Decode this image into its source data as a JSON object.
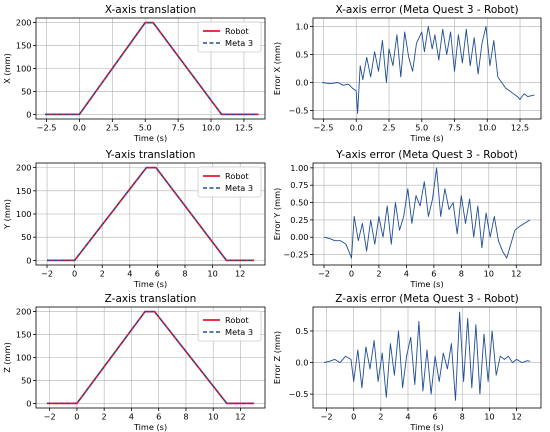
{
  "figure": {
    "background": "#ffffff",
    "robot_color": "#e8142c",
    "meta_color": "#1f4e96",
    "error_color": "#1f4e96",
    "grid_color": "#b0b0b0"
  },
  "chart_data": [
    {
      "id": "x_translation",
      "type": "line",
      "title": "X-axis translation",
      "xlabel": "Time (s)",
      "ylabel": "X (mm)",
      "xlim": [
        -3.3,
        14.1
      ],
      "ylim": [
        -10,
        210
      ],
      "xticks": [
        -2.5,
        0,
        2.5,
        5,
        7.5,
        10,
        12.5
      ],
      "xtick_labels": [
        "−2.5",
        "0.0",
        "2.5",
        "5.0",
        "7.5",
        "10.0",
        "12.5"
      ],
      "yticks": [
        0,
        50,
        100,
        150,
        200
      ],
      "ytick_labels": [
        "0",
        "50",
        "100",
        "150",
        "200"
      ],
      "grid": true,
      "legend": "upper right",
      "series": [
        {
          "name": "Robot",
          "style": "solid",
          "x": [
            -2.6,
            0.0,
            5.0,
            5.6,
            10.8,
            13.6
          ],
          "y": [
            0,
            0,
            200,
            200,
            0,
            0
          ]
        },
        {
          "name": "Meta 3",
          "style": "dashed",
          "x": [
            -2.6,
            0.0,
            5.0,
            5.6,
            10.8,
            13.6
          ],
          "y": [
            0,
            0,
            200,
            200,
            0,
            0
          ]
        }
      ]
    },
    {
      "id": "x_error",
      "type": "line",
      "title": "X-axis error (Meta Quest 3 - Robot)",
      "xlabel": "Time (s)",
      "ylabel": "Error X (mm)",
      "xlim": [
        -3.3,
        14.1
      ],
      "ylim": [
        -0.65,
        1.15
      ],
      "xticks": [
        -2.5,
        0,
        2.5,
        5,
        7.5,
        10,
        12.5
      ],
      "xtick_labels": [
        "−2.5",
        "0.0",
        "2.5",
        "5.0",
        "7.5",
        "10.0",
        "12.5"
      ],
      "yticks": [
        -0.5,
        0,
        0.5,
        1.0
      ],
      "ytick_labels": [
        "−0.5",
        "0.0",
        "0.5",
        "1.0"
      ],
      "grid": true,
      "series": [
        {
          "name": "",
          "x": [
            -2.6,
            -2.0,
            -1.4,
            -1.0,
            -0.6,
            -0.3,
            0.0,
            0.1,
            0.3,
            0.5,
            0.8,
            1.1,
            1.4,
            1.7,
            2.0,
            2.3,
            2.5,
            2.8,
            3.1,
            3.4,
            3.7,
            4.0,
            4.3,
            4.6,
            5.0,
            5.2,
            5.5,
            5.8,
            6.0,
            6.3,
            6.6,
            6.9,
            7.2,
            7.5,
            7.8,
            8.1,
            8.4,
            8.7,
            9.0,
            9.3,
            9.6,
            9.9,
            10.2,
            10.5,
            10.8,
            11.1,
            11.4,
            11.7,
            12.0,
            12.3,
            12.5,
            12.8,
            13.1,
            13.6
          ],
          "y": [
            0.0,
            -0.02,
            0.0,
            -0.05,
            -0.03,
            -0.1,
            -0.15,
            -0.55,
            0.3,
            0.05,
            0.45,
            0.1,
            0.55,
            0.2,
            0.75,
            0.0,
            0.6,
            0.3,
            0.85,
            0.1,
            0.9,
            0.45,
            0.2,
            0.7,
            0.9,
            0.55,
            1.0,
            0.6,
            0.85,
            0.4,
            0.95,
            0.5,
            0.9,
            0.2,
            0.85,
            0.35,
            0.95,
            0.3,
            0.8,
            0.15,
            0.7,
            1.0,
            0.3,
            0.75,
            0.1,
            0.0,
            -0.1,
            -0.15,
            -0.2,
            -0.25,
            -0.3,
            -0.2,
            -0.25,
            -0.22
          ]
        }
      ]
    },
    {
      "id": "y_translation",
      "type": "line",
      "title": "Y-axis translation",
      "xlabel": "Time (s)",
      "ylabel": "Y (mm)",
      "xlim": [
        -2.8,
        13.8
      ],
      "ylim": [
        -10,
        210
      ],
      "xticks": [
        -2,
        0,
        2,
        4,
        6,
        8,
        10,
        12
      ],
      "xtick_labels": [
        "−2",
        "0",
        "2",
        "4",
        "6",
        "8",
        "10",
        "12"
      ],
      "yticks": [
        0,
        50,
        100,
        150,
        200
      ],
      "ytick_labels": [
        "0",
        "50",
        "100",
        "150",
        "200"
      ],
      "grid": true,
      "legend": "upper right",
      "series": [
        {
          "name": "Robot",
          "style": "solid",
          "x": [
            -2.0,
            0.0,
            5.2,
            5.9,
            11.0,
            13.0
          ],
          "y": [
            0,
            0,
            200,
            200,
            0,
            0
          ]
        },
        {
          "name": "Meta 3",
          "style": "dashed",
          "x": [
            -2.0,
            0.0,
            5.2,
            5.9,
            11.0,
            13.0
          ],
          "y": [
            0,
            0,
            200,
            200,
            0,
            0
          ]
        }
      ]
    },
    {
      "id": "y_error",
      "type": "line",
      "title": "Y-axis error (Meta Quest 3 - Robot)",
      "xlabel": "Time (s)",
      "ylabel": "Error Y (mm)",
      "xlim": [
        -2.8,
        13.8
      ],
      "ylim": [
        -0.4,
        1.07
      ],
      "xticks": [
        -2,
        0,
        2,
        4,
        6,
        8,
        10,
        12
      ],
      "xtick_labels": [
        "−2",
        "0",
        "2",
        "4",
        "6",
        "8",
        "10",
        "12"
      ],
      "yticks": [
        -0.25,
        0,
        0.25,
        0.5,
        0.75,
        1.0
      ],
      "ytick_labels": [
        "−0.25",
        "0.00",
        "0.25",
        "0.50",
        "0.75",
        "1.00"
      ],
      "grid": true,
      "series": [
        {
          "name": "",
          "x": [
            -2.0,
            -1.6,
            -1.2,
            -0.8,
            -0.4,
            0.0,
            0.2,
            0.5,
            0.8,
            1.1,
            1.4,
            1.7,
            2.0,
            2.3,
            2.6,
            2.9,
            3.2,
            3.5,
            3.8,
            4.1,
            4.4,
            4.7,
            5.0,
            5.3,
            5.6,
            5.9,
            6.2,
            6.5,
            6.8,
            7.1,
            7.4,
            7.7,
            8.0,
            8.3,
            8.6,
            8.9,
            9.2,
            9.5,
            9.8,
            10.1,
            10.4,
            10.7,
            11.0,
            11.3,
            11.6,
            11.9,
            12.2,
            12.6,
            13.0
          ],
          "y": [
            0.0,
            -0.02,
            -0.05,
            -0.05,
            -0.1,
            -0.3,
            0.3,
            -0.05,
            0.2,
            -0.2,
            0.25,
            -0.1,
            0.3,
            0.0,
            0.45,
            -0.1,
            0.5,
            0.1,
            0.3,
            0.7,
            0.2,
            0.6,
            0.45,
            0.8,
            0.3,
            0.55,
            1.0,
            0.3,
            0.7,
            0.4,
            0.5,
            0.05,
            0.6,
            0.2,
            0.55,
            0.0,
            0.45,
            -0.15,
            0.35,
            0.0,
            0.3,
            -0.05,
            -0.2,
            -0.3,
            -0.1,
            0.1,
            0.15,
            0.2,
            0.25
          ]
        }
      ]
    },
    {
      "id": "z_translation",
      "type": "line",
      "title": "Z-axis translation",
      "xlabel": "Time (s)",
      "ylabel": "Z (mm)",
      "xlim": [
        -3.0,
        13.8
      ],
      "ylim": [
        -10,
        210
      ],
      "xticks": [
        -2,
        0,
        2,
        4,
        6,
        8,
        10,
        12
      ],
      "xtick_labels": [
        "−2",
        "0",
        "2",
        "4",
        "6",
        "8",
        "10",
        "12"
      ],
      "yticks": [
        0,
        50,
        100,
        150,
        200
      ],
      "ytick_labels": [
        "0",
        "50",
        "100",
        "150",
        "200"
      ],
      "grid": true,
      "legend": "upper right",
      "series": [
        {
          "name": "Robot",
          "style": "solid",
          "x": [
            -2.2,
            0.0,
            5.0,
            5.7,
            11.0,
            13.0
          ],
          "y": [
            0,
            0,
            200,
            200,
            0,
            0
          ]
        },
        {
          "name": "Meta 3",
          "style": "dashed",
          "x": [
            -2.2,
            0.0,
            5.0,
            5.7,
            11.0,
            13.0
          ],
          "y": [
            0,
            0,
            200,
            200,
            0,
            0
          ]
        }
      ]
    },
    {
      "id": "z_error",
      "type": "line",
      "title": "Z-axis error (Meta Quest 3 - Robot)",
      "xlabel": "Time (s)",
      "ylabel": "Error Z (mm)",
      "xlim": [
        -3.0,
        13.8
      ],
      "ylim": [
        -0.72,
        0.88
      ],
      "xticks": [
        -2,
        0,
        2,
        4,
        6,
        8,
        10,
        12
      ],
      "xtick_labels": [
        "−2",
        "0",
        "2",
        "4",
        "6",
        "8",
        "10",
        "12"
      ],
      "yticks": [
        -0.5,
        0,
        0.5
      ],
      "ytick_labels": [
        "−0.5",
        "0.0",
        "0.5"
      ],
      "grid": true,
      "series": [
        {
          "name": "",
          "x": [
            -2.2,
            -1.8,
            -1.4,
            -1.0,
            -0.6,
            -0.2,
            0.0,
            0.3,
            0.6,
            0.9,
            1.2,
            1.5,
            1.8,
            2.1,
            2.4,
            2.7,
            3.0,
            3.3,
            3.6,
            3.9,
            4.2,
            4.5,
            4.8,
            5.1,
            5.4,
            5.7,
            6.0,
            6.3,
            6.6,
            6.9,
            7.2,
            7.5,
            7.8,
            8.1,
            8.4,
            8.7,
            9.0,
            9.3,
            9.6,
            9.9,
            10.2,
            10.5,
            10.8,
            11.1,
            11.4,
            11.7,
            12.0,
            12.4,
            12.8,
            13.0
          ],
          "y": [
            0.0,
            0.02,
            0.05,
            0.0,
            0.1,
            0.05,
            -0.3,
            0.2,
            -0.4,
            0.25,
            -0.1,
            0.35,
            -0.3,
            0.15,
            -0.55,
            0.3,
            -0.2,
            0.5,
            -0.4,
            0.1,
            0.4,
            -0.35,
            0.65,
            -0.45,
            0.2,
            -0.5,
            0.1,
            -0.3,
            0.15,
            -0.1,
            0.3,
            -0.6,
            0.8,
            -0.3,
            0.7,
            -0.4,
            0.6,
            -0.5,
            0.45,
            -0.3,
            0.5,
            -0.2,
            0.1,
            0.05,
            0.1,
            0.0,
            0.05,
            0.0,
            0.03,
            0.02
          ]
        }
      ]
    }
  ]
}
